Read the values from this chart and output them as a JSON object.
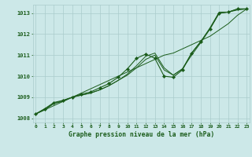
{
  "title": "Graphe pression niveau de la mer (hPa)",
  "xlabel_hours": [
    0,
    1,
    2,
    3,
    4,
    5,
    6,
    7,
    8,
    9,
    10,
    11,
    12,
    13,
    14,
    15,
    16,
    17,
    18,
    19,
    20,
    21,
    22,
    23
  ],
  "ylim": [
    1007.8,
    1013.4
  ],
  "yticks": [
    1008,
    1009,
    1010,
    1011,
    1012,
    1013
  ],
  "background_color": "#cce8e8",
  "grid_color": "#aacccc",
  "line_color": "#1a5c1a",
  "line_straight": [
    1008.2,
    1008.4,
    1008.6,
    1008.8,
    1009.0,
    1009.2,
    1009.4,
    1009.6,
    1009.8,
    1010.0,
    1010.2,
    1010.4,
    1010.6,
    1010.8,
    1011.0,
    1011.1,
    1011.3,
    1011.5,
    1011.7,
    1011.9,
    1012.2,
    1012.5,
    1012.9,
    1013.2
  ],
  "line_smooth1": [
    1008.2,
    1008.4,
    1008.7,
    1008.8,
    1009.0,
    1009.1,
    1009.2,
    1009.35,
    1009.55,
    1009.8,
    1010.05,
    1010.4,
    1010.8,
    1011.0,
    1010.3,
    1010.05,
    1010.35,
    1011.0,
    1011.6,
    1012.25,
    1013.0,
    1013.05,
    1013.15,
    1013.2
  ],
  "line_smooth2": [
    1008.2,
    1008.45,
    1008.7,
    1008.85,
    1009.0,
    1009.1,
    1009.2,
    1009.35,
    1009.55,
    1009.8,
    1010.1,
    1010.5,
    1010.95,
    1011.1,
    1010.4,
    1010.05,
    1010.35,
    1011.1,
    1011.65,
    1012.3,
    1013.05,
    1013.05,
    1013.2,
    1013.2
  ],
  "line_markers": [
    1008.2,
    1008.45,
    1008.75,
    1008.85,
    1009.0,
    1009.15,
    1009.25,
    1009.45,
    1009.65,
    1009.95,
    1010.35,
    1010.85,
    1011.05,
    1010.85,
    1010.0,
    1009.95,
    1010.3,
    1011.1,
    1011.65,
    1012.25,
    1013.0,
    1013.05,
    1013.2,
    1013.2
  ]
}
